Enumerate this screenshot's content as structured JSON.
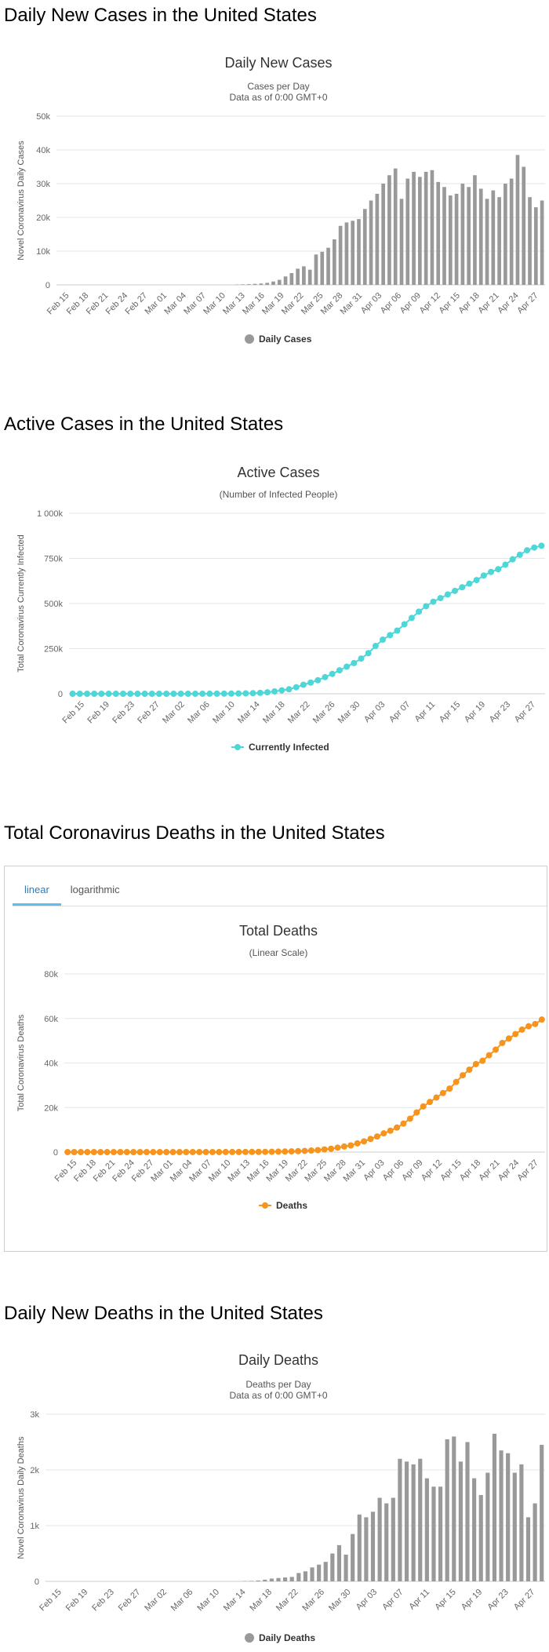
{
  "sections": {
    "cases": "Daily New Cases in the United States",
    "active": "Active Cases in the United States",
    "deaths": "Total Coronavirus Deaths in the United States",
    "daily_deaths": "Daily New Deaths in the United States"
  },
  "tabs": {
    "linear": "linear",
    "log": "logarithmic"
  },
  "colors": {
    "bars": "#999999",
    "active": "#4fd7d7",
    "deaths": "#f7941d",
    "grid": "#e6e6e6"
  },
  "chart_data": [
    {
      "id": "cases",
      "type": "bar",
      "title": "Daily New Cases",
      "subtitle": [
        "Cases per Day",
        "Data as of 0:00 GMT+0"
      ],
      "ylabel": "Novel Coronavirus Daily Cases",
      "yticks": [
        "0",
        "10k",
        "20k",
        "30k",
        "40k",
        "50k"
      ],
      "ylim": [
        0,
        50000
      ],
      "tick_labels": [
        "Feb 15",
        "Feb 18",
        "Feb 21",
        "Feb 24",
        "Feb 27",
        "Mar 01",
        "Mar 04",
        "Mar 07",
        "Mar 10",
        "Mar 13",
        "Mar 16",
        "Mar 19",
        "Mar 22",
        "Mar 25",
        "Mar 28",
        "Mar 31",
        "Apr 03",
        "Apr 06",
        "Apr 09",
        "Apr 12",
        "Apr 15",
        "Apr 18",
        "Apr 21",
        "Apr 24",
        "Apr 27"
      ],
      "legend": "Daily Cases",
      "values": [
        0,
        0,
        0,
        0,
        0,
        0,
        0,
        0,
        0,
        0,
        0,
        0,
        0,
        0,
        0,
        0,
        0,
        0,
        0,
        0,
        0,
        0,
        0,
        0,
        0,
        0,
        0,
        0,
        0,
        100,
        150,
        200,
        300,
        400,
        600,
        1000,
        1500,
        2500,
        3500,
        4800,
        5500,
        4500,
        9000,
        9800,
        11000,
        13500,
        17500,
        18500,
        19000,
        19500,
        22500,
        25000,
        27000,
        30000,
        32500,
        34500,
        25500,
        31500,
        33500,
        32000,
        33500,
        34000,
        30500,
        29000,
        26500,
        27000,
        30000,
        29000,
        32500,
        28500,
        25500,
        28000,
        26000,
        30000,
        31500,
        38500,
        35000,
        26000,
        23000,
        25000
      ]
    },
    {
      "id": "active",
      "type": "line",
      "title": "Active Cases",
      "subtitle": [
        "(Number of Infected People)"
      ],
      "ylabel": "Total Coronavirus Currently Infected",
      "yticks": [
        "0",
        "250k",
        "500k",
        "750k",
        "1 000k"
      ],
      "ylim": [
        0,
        1000000
      ],
      "tick_labels": [
        "Feb 15",
        "Feb 19",
        "Feb 23",
        "Feb 27",
        "Mar 02",
        "Mar 06",
        "Mar 10",
        "Mar 14",
        "Mar 18",
        "Mar 22",
        "Mar 26",
        "Mar 30",
        "Apr 03",
        "Apr 07",
        "Apr 11",
        "Apr 15",
        "Apr 19",
        "Apr 23",
        "Apr 27"
      ],
      "legend": "Currently Infected",
      "values": [
        10,
        10,
        10,
        10,
        10,
        10,
        10,
        10,
        10,
        10,
        20,
        30,
        40,
        50,
        60,
        80,
        100,
        150,
        200,
        300,
        500,
        800,
        1000,
        1500,
        2000,
        3000,
        5000,
        8000,
        13000,
        19000,
        25000,
        36000,
        50000,
        62000,
        75000,
        92000,
        110000,
        130000,
        150000,
        170000,
        195000,
        225000,
        265000,
        300000,
        325000,
        350000,
        385000,
        420000,
        455000,
        485000,
        510000,
        530000,
        550000,
        570000,
        590000,
        610000,
        630000,
        655000,
        675000,
        690000,
        715000,
        745000,
        770000,
        795000,
        810000,
        820000
      ]
    },
    {
      "id": "deaths",
      "type": "line",
      "title": "Total Deaths",
      "subtitle": [
        "(Linear Scale)"
      ],
      "ylabel": "Total Coronavirus Deaths",
      "yticks": [
        "0",
        "20k",
        "40k",
        "60k",
        "80k"
      ],
      "ylim": [
        0,
        80000
      ],
      "tick_labels": [
        "Feb 15",
        "Feb 18",
        "Feb 21",
        "Feb 24",
        "Feb 27",
        "Mar 01",
        "Mar 04",
        "Mar 07",
        "Mar 10",
        "Mar 13",
        "Mar 16",
        "Mar 19",
        "Mar 22",
        "Mar 25",
        "Mar 28",
        "Mar 31",
        "Apr 03",
        "Apr 06",
        "Apr 09",
        "Apr 12",
        "Apr 15",
        "Apr 18",
        "Apr 21",
        "Apr 24",
        "Apr 27"
      ],
      "legend": "Deaths",
      "values": [
        0,
        0,
        0,
        0,
        0,
        0,
        0,
        0,
        0,
        0,
        0,
        0,
        0,
        0,
        0,
        1,
        2,
        3,
        5,
        8,
        10,
        12,
        15,
        20,
        25,
        30,
        40,
        55,
        70,
        90,
        110,
        150,
        200,
        250,
        320,
        420,
        550,
        700,
        900,
        1200,
        1500,
        2000,
        2500,
        3000,
        3900,
        4800,
        5900,
        7000,
        8400,
        9600,
        11000,
        12800,
        15000,
        17800,
        20500,
        22500,
        24500,
        26500,
        28500,
        31500,
        34500,
        37000,
        39500,
        41000,
        43500,
        46000,
        49000,
        51000,
        53000,
        55000,
        56500,
        57500,
        59500
      ]
    },
    {
      "id": "daily_deaths",
      "type": "bar",
      "title": "Daily Deaths",
      "subtitle": [
        "Deaths per Day",
        "Data as of 0:00 GMT+0"
      ],
      "ylabel": "Novel Coronavirus Daily Deaths",
      "yticks": [
        "0",
        "1k",
        "2k",
        "3k"
      ],
      "ylim": [
        0,
        3000
      ],
      "tick_labels": [
        "Feb 15",
        "Feb 19",
        "Feb 23",
        "Feb 27",
        "Mar 02",
        "Mar 06",
        "Mar 10",
        "Mar 14",
        "Mar 18",
        "Mar 22",
        "Mar 26",
        "Mar 30",
        "Apr 03",
        "Apr 07",
        "Apr 11",
        "Apr 15",
        "Apr 19",
        "Apr 23",
        "Apr 27"
      ],
      "legend": "Daily Deaths",
      "values": [
        0,
        0,
        0,
        0,
        0,
        0,
        0,
        0,
        0,
        0,
        0,
        0,
        0,
        0,
        0,
        0,
        0,
        0,
        0,
        0,
        0,
        0,
        0,
        0,
        0,
        0,
        0,
        0,
        0,
        5,
        8,
        15,
        30,
        50,
        60,
        70,
        80,
        150,
        180,
        250,
        300,
        350,
        500,
        650,
        480,
        850,
        1200,
        1150,
        1250,
        1500,
        1400,
        1500,
        2200,
        2150,
        2100,
        2200,
        1850,
        1700,
        1700,
        2550,
        2600,
        2150,
        2500,
        1850,
        1550,
        1950,
        2650,
        2350,
        2300,
        1950,
        2100,
        1150,
        1400,
        2450
      ]
    }
  ]
}
